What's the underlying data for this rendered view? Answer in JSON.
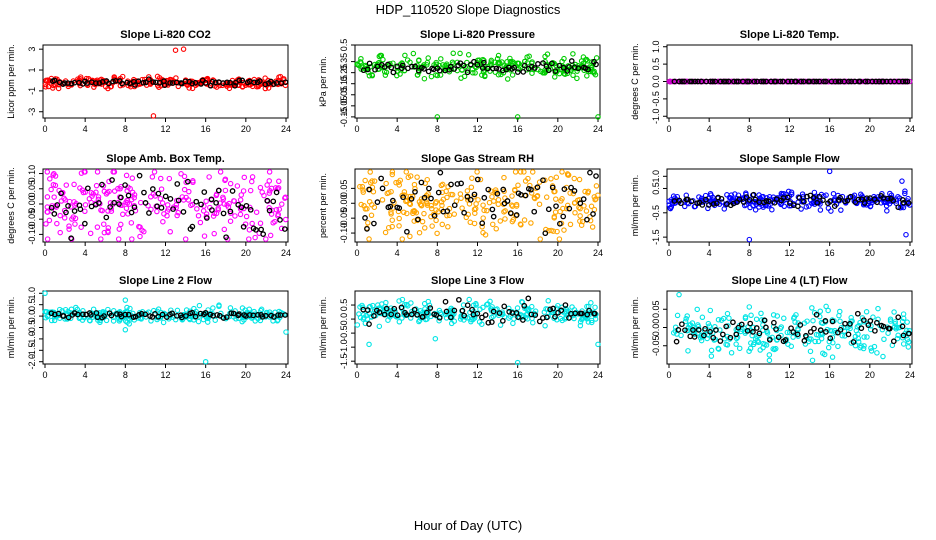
{
  "figure": {
    "title": "HDP_110520  Slope Diagnostics",
    "xlabel": "Hour of Day (UTC)"
  },
  "chart_data": [
    {
      "type": "scatter",
      "title": "Slope Li-820 CO2",
      "ylabel": "Licor ppm per min.",
      "color": "#ff0000",
      "xlim": [
        0,
        24
      ],
      "xticks": [
        0,
        4,
        8,
        12,
        16,
        20,
        24
      ],
      "ylim": [
        -3.6,
        3.4
      ],
      "yticks": [
        -3,
        -1,
        1,
        3
      ],
      "center": -0.2,
      "spread": 0.25,
      "black_center": -0.2,
      "black_spread": 0.12,
      "outliers": [
        [
          13,
          2.9
        ],
        [
          13.8,
          3.0
        ],
        [
          10.8,
          -3.4
        ]
      ]
    },
    {
      "type": "scatter",
      "title": "Slope Li-820 Pressure",
      "ylabel": "kPa per min.",
      "color": "#00cc00",
      "xlim": [
        0,
        24
      ],
      "xticks": [
        0,
        4,
        8,
        12,
        16,
        20,
        24
      ],
      "ylim": [
        -0.16,
        0.5
      ],
      "yticks": [
        -0.15,
        -0.05,
        0.05,
        0.15,
        0.25,
        0.35,
        0.5
      ],
      "tick_labels": [
        "-0.15",
        "-0.05",
        "0.05",
        "0.15",
        "0.25",
        "0.35",
        "0.5"
      ],
      "center": 0.3,
      "spread": 0.05,
      "black_center": 0.3,
      "black_spread": 0.025,
      "outliers": [
        [
          8,
          -0.15
        ],
        [
          16,
          -0.15
        ],
        [
          24,
          -0.15
        ],
        [
          21.5,
          0.42
        ]
      ]
    },
    {
      "type": "scatter",
      "title": "Slope Li-820 Temp.",
      "ylabel": "degrees C per min.",
      "color": "#cc00cc",
      "xlim": [
        0,
        24
      ],
      "xticks": [
        0,
        4,
        8,
        12,
        16,
        20,
        24
      ],
      "ylim": [
        -1.05,
        1.05
      ],
      "yticks": [
        -1.0,
        -0.5,
        0.0,
        0.5,
        1.0
      ],
      "tick_labels": [
        "-1.0",
        "-0.5",
        "0.0",
        "0.5",
        "1.0"
      ],
      "center": 0,
      "spread": 0,
      "black_center": 0,
      "black_spread": 0,
      "outliers": []
    },
    {
      "type": "scatter",
      "title": "Slope Amb. Box Temp.",
      "ylabel": "degrees C per min.",
      "color": "#ff00ff",
      "xlim": [
        0,
        24
      ],
      "xticks": [
        0,
        4,
        8,
        12,
        16,
        20,
        24
      ],
      "ylim": [
        -0.125,
        0.115
      ],
      "yticks": [
        -0.1,
        -0.05,
        0.0,
        0.05,
        0.1
      ],
      "tick_labels": [
        "-0.10",
        "-0.05",
        "0.00",
        "0.05",
        "0.10"
      ],
      "center": 0,
      "spread": 0.06,
      "black_center": 0,
      "black_spread": 0.045,
      "outliers": []
    },
    {
      "type": "scatter",
      "title": "Slope Gas Stream RH",
      "ylabel": "percent per min.",
      "color": "#ffa500",
      "xlim": [
        0,
        24
      ],
      "xticks": [
        0,
        4,
        8,
        12,
        16,
        20,
        24
      ],
      "ylim": [
        -0.13,
        0.115
      ],
      "yticks": [
        -0.1,
        -0.05,
        0.0,
        0.05
      ],
      "tick_labels": [
        "-0.10",
        "-0.05",
        "0.00",
        "0.05"
      ],
      "center": 0,
      "spread": 0.055,
      "black_center": 0,
      "black_spread": 0.05,
      "outliers": [
        [
          1.2,
          -0.12
        ],
        [
          17.5,
          0.105
        ],
        [
          21,
          0.095
        ]
      ]
    },
    {
      "type": "scatter",
      "title": "Slope Sample Flow",
      "ylabel": "ml/min per min.",
      "color": "#0000ff",
      "xlim": [
        0,
        24
      ],
      "xticks": [
        0,
        4,
        8,
        12,
        16,
        20,
        24
      ],
      "ylim": [
        -1.7,
        1.3
      ],
      "yticks": [
        -1.5,
        -0.5,
        0.5,
        1.0
      ],
      "tick_labels": [
        "-1.5",
        "-0.5",
        "0.5",
        "1.0"
      ],
      "center": 0,
      "spread": 0.17,
      "black_center": 0,
      "black_spread": 0.12,
      "outliers": [
        [
          8,
          -1.6
        ],
        [
          16,
          1.2
        ],
        [
          23.6,
          -1.4
        ],
        [
          23.2,
          0.8
        ]
      ]
    },
    {
      "type": "scatter",
      "title": "Slope Line 2 Flow",
      "ylabel": "ml/min per min.",
      "color": "#00e5e5",
      "xlim": [
        0,
        24
      ],
      "xticks": [
        0,
        4,
        8,
        12,
        16,
        20,
        24
      ],
      "ylim": [
        -2.1,
        1.1
      ],
      "yticks": [
        -2.0,
        -1.5,
        -1.0,
        -0.5,
        0.0,
        0.5,
        1.0
      ],
      "tick_labels": [
        "-2.0",
        "-1.5",
        "-1.0",
        "-0.5",
        "0.0",
        "0.5",
        "1.0"
      ],
      "center": 0.05,
      "spread": 0.15,
      "black_center": 0.05,
      "black_spread": 0.07,
      "outliers": [
        [
          16,
          -2.0
        ],
        [
          8,
          -0.6
        ],
        [
          24,
          -0.7
        ],
        [
          0,
          1.0
        ],
        [
          8,
          0.7
        ]
      ]
    },
    {
      "type": "scatter",
      "title": "Slope Line 3 Flow",
      "ylabel": "ml/min per min.",
      "color": "#00e5e5",
      "xlim": [
        0,
        24
      ],
      "xticks": [
        0,
        4,
        8,
        12,
        16,
        20,
        24
      ],
      "ylim": [
        -1.6,
        1.0
      ],
      "yticks": [
        -1.5,
        -1.0,
        -0.5,
        0.0,
        0.5
      ],
      "tick_labels": [
        "-1.5",
        "-1.0",
        "-0.5",
        "0.0",
        "0.5"
      ],
      "center": 0.2,
      "spread": 0.2,
      "black_center": 0.2,
      "black_spread": 0.18,
      "outliers": [
        [
          16,
          -1.55
        ],
        [
          1.2,
          -0.9
        ],
        [
          24,
          -0.9
        ],
        [
          7.8,
          -0.7
        ]
      ]
    },
    {
      "type": "scatter",
      "title": "Slope Line 4 (LT) Flow",
      "ylabel": "ml/min per min.",
      "color": "#00e5e5",
      "xlim": [
        0,
        24
      ],
      "xticks": [
        0,
        4,
        8,
        12,
        16,
        20,
        24
      ],
      "ylim": [
        -0.1,
        0.1
      ],
      "yticks": [
        -0.05,
        0.0,
        0.05
      ],
      "tick_labels": [
        "-0.05",
        "0.00",
        "0.05"
      ],
      "center": -0.01,
      "spread": 0.03,
      "black_center": -0.005,
      "black_spread": 0.02,
      "outliers": [
        [
          1.0,
          0.09
        ],
        [
          10,
          -0.09
        ]
      ]
    }
  ]
}
